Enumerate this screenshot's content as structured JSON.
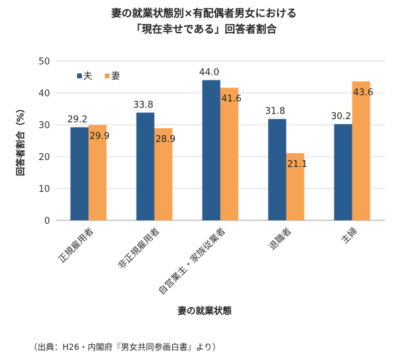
{
  "chart_data": {
    "type": "bar",
    "title_lines": [
      "妻の就業状態別×有配偶者男女における",
      "「現在幸せである」回答者割合"
    ],
    "xlabel": "妻の就業状態",
    "ylabel": "回答者割合（%）",
    "categories": [
      "正規雇用者",
      "非正規雇用者",
      "自営業主・家族従業者",
      "退職者",
      "主婦"
    ],
    "series": [
      {
        "name": "夫",
        "values": [
          29.2,
          33.8,
          44.0,
          31.8,
          30.2
        ],
        "labels": [
          "29.2",
          "33.8",
          "44.0",
          "31.8",
          "30.2"
        ],
        "color": "#2B5C8F"
      },
      {
        "name": "妻",
        "values": [
          29.9,
          28.9,
          41.6,
          21.1,
          43.6
        ],
        "labels": [
          "29.9",
          "28.9",
          "41.6",
          "21.1",
          "43.6"
        ],
        "color": "#F7A354"
      }
    ],
    "ylim": [
      0,
      50
    ],
    "yticks": [
      0,
      10,
      20,
      30,
      40,
      50
    ],
    "grid": true,
    "legend_position": "top-left"
  },
  "source_note": "（出典：H26・内閣府『男女共同参画白書』より）"
}
